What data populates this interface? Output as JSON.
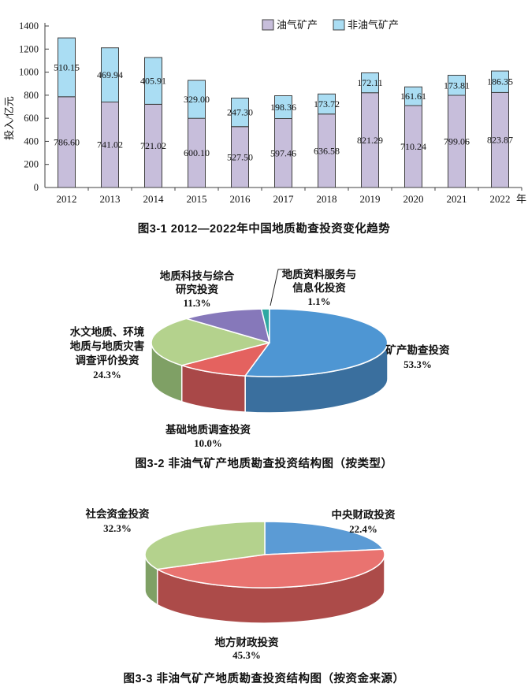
{
  "page": {
    "background": "#ffffff",
    "text_color": "#111111"
  },
  "chart_data": [
    {
      "id": "fig3-1",
      "type": "bar",
      "stacked": true,
      "title": "图3-1  2012—2022年中国地质勘查投资变化趋势",
      "ylabel": "投入/亿元",
      "ylim": [
        0,
        1400
      ],
      "ytick_step": 200,
      "grid": false,
      "legend_position": "top-right",
      "x_axis_unit": "年",
      "categories": [
        "2012",
        "2013",
        "2014",
        "2015",
        "2016",
        "2017",
        "2018",
        "2019",
        "2020",
        "2021",
        "2022"
      ],
      "series": [
        {
          "name": "油气矿产",
          "color": "#c7bedb",
          "values": [
            786.6,
            741.02,
            721.02,
            600.1,
            527.5,
            597.46,
            636.58,
            821.29,
            710.24,
            799.06,
            823.87
          ],
          "labels": [
            "786.60",
            "741.02",
            "721.02",
            "600.10",
            "527.50",
            "597.46",
            "636.58",
            "821.29",
            "710.24",
            "799.06",
            "823.87"
          ]
        },
        {
          "name": "非油气矿产",
          "color": "#aaddf3",
          "values": [
            510.15,
            469.94,
            405.91,
            329.0,
            247.3,
            198.36,
            173.72,
            172.11,
            161.61,
            173.81,
            186.35
          ],
          "labels": [
            "510.15",
            "469.94",
            "405.91",
            "329.00",
            "247.30",
            "198.36",
            "173.72",
            "172.11",
            "161.61",
            "173.81",
            "186.35"
          ]
        }
      ],
      "axis_color": "#404040"
    },
    {
      "id": "fig3-2",
      "type": "pie",
      "title": "图3-2  非油气矿产地质勘查投资结构图（按类型）",
      "slices": [
        {
          "label": "地质资料服务与信息化投资",
          "label_lines": [
            "地质资料服务与",
            "信息化投资"
          ],
          "pct": 1.1,
          "pct_label": "1.1%",
          "color": "#2fa8a2",
          "side": "#217c78"
        },
        {
          "label": "矿产勘查投资",
          "label_lines": [
            "矿产勘查投资"
          ],
          "pct": 53.3,
          "pct_label": "53.3%",
          "color": "#4e96d3",
          "side": "#3a6f9e"
        },
        {
          "label": "基础地质调查投资",
          "label_lines": [
            "基础地质调查投资"
          ],
          "pct": 10.0,
          "pct_label": "10.0%",
          "color": "#e4625f",
          "side": "#a94848"
        },
        {
          "label": "水文地质、环境地质与地质灾害调查评价投资",
          "label_lines": [
            "水文地质、环境",
            "地质与地质灾害",
            "调查评价投资"
          ],
          "pct": 24.3,
          "pct_label": "24.3%",
          "color": "#b4d28d",
          "side": "#7fa065"
        },
        {
          "label": "地质科技与综合研究投资",
          "label_lines": [
            "地质科技与综合",
            "研究投资"
          ],
          "pct": 11.3,
          "pct_label": "11.3%",
          "color": "#8678ba",
          "side": "#61558c"
        }
      ]
    },
    {
      "id": "fig3-3",
      "type": "pie",
      "title": "图3-3  非油气矿产地质勘查投资结构图（按资金来源）",
      "slices": [
        {
          "label": "中央财政投资",
          "label_lines": [
            "中央财政投资"
          ],
          "pct": 22.4,
          "pct_label": "22.4%",
          "color": "#5b9bd5",
          "side": "#41729e"
        },
        {
          "label": "地方财政投资",
          "label_lines": [
            "地方财政投资"
          ],
          "pct": 45.3,
          "pct_label": "45.3%",
          "color": "#e97370",
          "side": "#ac4b49"
        },
        {
          "label": "社会资金投资",
          "label_lines": [
            "社会资金投资"
          ],
          "pct": 32.3,
          "pct_label": "32.3%",
          "color": "#b4d28d",
          "side": "#7fa065"
        }
      ]
    }
  ]
}
